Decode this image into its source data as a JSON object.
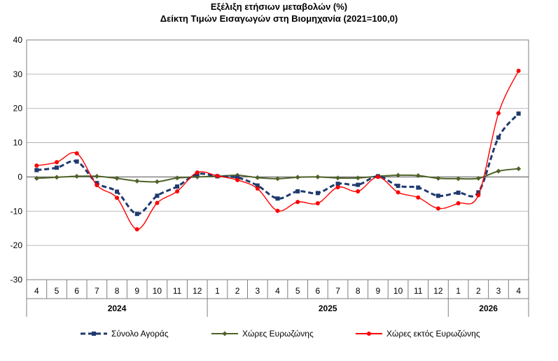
{
  "chart_data": {
    "type": "line",
    "title": "Εξέλιξη ετήσιων μεταβολών (%)",
    "subtitle": "Δείκτη Τιμών Εισαγωγών στη Βιομηχανία (2021=100,0)",
    "ylim": [
      -30,
      40
    ],
    "yticks": [
      "40",
      "30",
      "20",
      "10",
      "0",
      "-10",
      "-20",
      "-30"
    ],
    "grid": true,
    "legend_position": "bottom",
    "categories": [
      "4",
      "5",
      "6",
      "7",
      "8",
      "9",
      "10",
      "11",
      "12",
      "1",
      "2",
      "3",
      "4",
      "5",
      "6",
      "7",
      "8",
      "9",
      "10",
      "11",
      "12",
      "1",
      "2",
      "3",
      "4"
    ],
    "year_groups": [
      {
        "label": "2024",
        "start": 0,
        "end": 8
      },
      {
        "label": "2025",
        "start": 9,
        "end": 20
      },
      {
        "label": "2026",
        "start": 21,
        "end": 24
      }
    ],
    "series": [
      {
        "name": "Σύνολο Αγοράς",
        "color": "#1f3a6e",
        "style": "dashed-square",
        "values": [
          2.0,
          2.7,
          4.5,
          -1.8,
          -4.3,
          -10.8,
          -5.5,
          -2.8,
          0.8,
          0.2,
          -0.2,
          -2.5,
          -6.3,
          -4.2,
          -4.7,
          -2.0,
          -2.3,
          0.2,
          -2.6,
          -3.1,
          -5.5,
          -4.6,
          -4.5,
          11.5,
          18.5
        ]
      },
      {
        "name": "Χώρες Ευρωζώνης",
        "color": "#4f6228",
        "style": "solid-diamond",
        "values": [
          -0.4,
          -0.1,
          0.2,
          0.2,
          -0.4,
          -1.2,
          -1.4,
          -0.3,
          0.0,
          0.2,
          0.5,
          -0.2,
          -0.5,
          -0.1,
          0.0,
          -0.3,
          -0.3,
          0.2,
          0.5,
          0.4,
          -0.4,
          -0.5,
          -0.4,
          1.7,
          2.4
        ]
      },
      {
        "name": "Χώρες εκτός Ευρωζώνης",
        "color": "#ff0000",
        "style": "solid-circle",
        "values": [
          3.3,
          4.3,
          6.9,
          -2.4,
          -6.1,
          -15.3,
          -7.6,
          -4.2,
          1.3,
          0.3,
          -0.9,
          -3.4,
          -9.9,
          -7.3,
          -7.7,
          -3.0,
          -4.2,
          0.0,
          -4.5,
          -6.0,
          -9.2,
          -7.7,
          -5.3,
          18.6,
          31.0
        ]
      }
    ]
  }
}
